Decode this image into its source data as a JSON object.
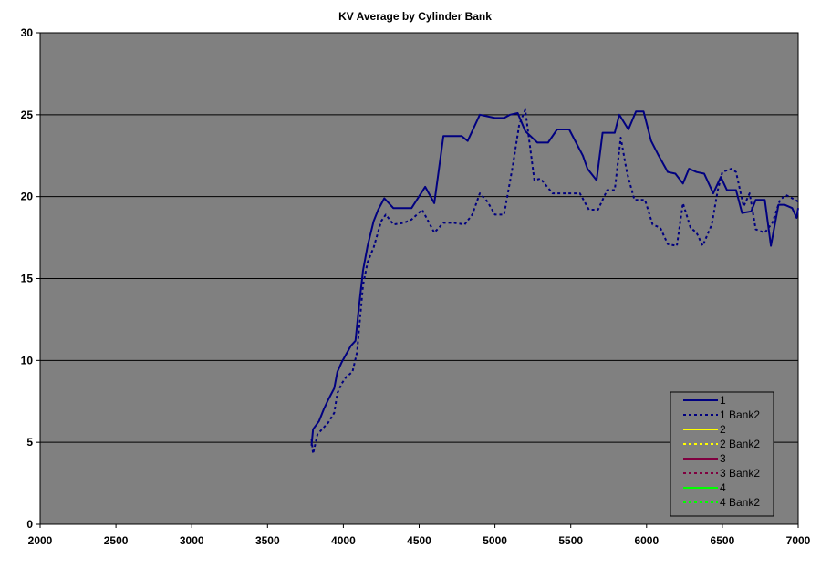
{
  "chart_data": {
    "type": "line",
    "title": "KV Average by Cylinder Bank",
    "xlabel": "",
    "ylabel": "",
    "xlim": [
      2000,
      7000
    ],
    "ylim": [
      0,
      30
    ],
    "x_ticks": [
      "2000",
      "2500",
      "3000",
      "3500",
      "4000",
      "4500",
      "5000",
      "5500",
      "6000",
      "6500",
      "7000"
    ],
    "y_ticks": [
      "0",
      "5",
      "10",
      "15",
      "20",
      "25",
      "30"
    ],
    "grid": "horizontal",
    "legend_position": "bottom-right",
    "plot_background": "#808080",
    "series": [
      {
        "name": "1",
        "color": "#000080",
        "dash": "solid",
        "points": [
          [
            3790,
            4.8
          ],
          [
            3800,
            5.8
          ],
          [
            3840,
            6.3
          ],
          [
            3870,
            7.0
          ],
          [
            3900,
            7.6
          ],
          [
            3940,
            8.3
          ],
          [
            3960,
            9.3
          ],
          [
            3990,
            9.9
          ],
          [
            4020,
            10.4
          ],
          [
            4050,
            10.9
          ],
          [
            4080,
            11.2
          ],
          [
            4100,
            13.0
          ],
          [
            4130,
            15.5
          ],
          [
            4160,
            17.0
          ],
          [
            4200,
            18.5
          ],
          [
            4230,
            19.2
          ],
          [
            4270,
            19.9
          ],
          [
            4330,
            19.3
          ],
          [
            4450,
            19.3
          ],
          [
            4540,
            20.6
          ],
          [
            4600,
            19.6
          ],
          [
            4660,
            23.7
          ],
          [
            4780,
            23.7
          ],
          [
            4820,
            23.4
          ],
          [
            4900,
            25.0
          ],
          [
            5000,
            24.8
          ],
          [
            5060,
            24.8
          ],
          [
            5100,
            25.0
          ],
          [
            5150,
            25.1
          ],
          [
            5200,
            24.0
          ],
          [
            5280,
            23.3
          ],
          [
            5350,
            23.3
          ],
          [
            5410,
            24.1
          ],
          [
            5490,
            24.1
          ],
          [
            5580,
            22.5
          ],
          [
            5610,
            21.7
          ],
          [
            5670,
            21.0
          ],
          [
            5710,
            23.9
          ],
          [
            5790,
            23.9
          ],
          [
            5820,
            25.0
          ],
          [
            5880,
            24.1
          ],
          [
            5930,
            25.2
          ],
          [
            5980,
            25.2
          ],
          [
            6030,
            23.4
          ],
          [
            6080,
            22.5
          ],
          [
            6140,
            21.5
          ],
          [
            6190,
            21.4
          ],
          [
            6240,
            20.8
          ],
          [
            6280,
            21.7
          ],
          [
            6330,
            21.5
          ],
          [
            6380,
            21.4
          ],
          [
            6440,
            20.2
          ],
          [
            6490,
            21.2
          ],
          [
            6530,
            20.4
          ],
          [
            6590,
            20.4
          ],
          [
            6630,
            19.0
          ],
          [
            6690,
            19.1
          ],
          [
            6720,
            19.8
          ],
          [
            6780,
            19.8
          ],
          [
            6820,
            17.0
          ],
          [
            6870,
            19.5
          ],
          [
            6910,
            19.5
          ],
          [
            6960,
            19.3
          ],
          [
            6990,
            18.7
          ],
          [
            7000,
            19.3
          ]
        ]
      },
      {
        "name": "1 Bank2",
        "color": "#000080",
        "dash": "dotted",
        "points": [
          [
            3790,
            5.2
          ],
          [
            3800,
            4.3
          ],
          [
            3830,
            5.5
          ],
          [
            3870,
            5.9
          ],
          [
            3900,
            6.2
          ],
          [
            3940,
            6.8
          ],
          [
            3960,
            8.0
          ],
          [
            3990,
            8.6
          ],
          [
            4020,
            9.0
          ],
          [
            4060,
            9.3
          ],
          [
            4090,
            10.5
          ],
          [
            4130,
            14.6
          ],
          [
            4160,
            16.0
          ],
          [
            4200,
            16.9
          ],
          [
            4250,
            18.5
          ],
          [
            4280,
            18.9
          ],
          [
            4330,
            18.3
          ],
          [
            4400,
            18.4
          ],
          [
            4450,
            18.6
          ],
          [
            4520,
            19.2
          ],
          [
            4600,
            17.8
          ],
          [
            4660,
            18.4
          ],
          [
            4730,
            18.4
          ],
          [
            4800,
            18.3
          ],
          [
            4850,
            18.9
          ],
          [
            4900,
            20.2
          ],
          [
            4950,
            19.7
          ],
          [
            5000,
            18.9
          ],
          [
            5060,
            18.9
          ],
          [
            5120,
            22.0
          ],
          [
            5160,
            24.4
          ],
          [
            5200,
            25.3
          ],
          [
            5260,
            21.0
          ],
          [
            5300,
            21.1
          ],
          [
            5380,
            20.2
          ],
          [
            5480,
            20.2
          ],
          [
            5560,
            20.2
          ],
          [
            5620,
            19.2
          ],
          [
            5680,
            19.2
          ],
          [
            5740,
            20.4
          ],
          [
            5790,
            20.4
          ],
          [
            5830,
            23.6
          ],
          [
            5870,
            21.5
          ],
          [
            5920,
            19.8
          ],
          [
            5990,
            19.8
          ],
          [
            6040,
            18.3
          ],
          [
            6090,
            18.1
          ],
          [
            6140,
            17.1
          ],
          [
            6200,
            17.0
          ],
          [
            6240,
            19.6
          ],
          [
            6290,
            18.1
          ],
          [
            6330,
            17.8
          ],
          [
            6370,
            17.0
          ],
          [
            6430,
            18.3
          ],
          [
            6470,
            20.4
          ],
          [
            6500,
            21.5
          ],
          [
            6560,
            21.7
          ],
          [
            6590,
            21.5
          ],
          [
            6640,
            19.4
          ],
          [
            6680,
            20.2
          ],
          [
            6720,
            18.0
          ],
          [
            6780,
            17.8
          ],
          [
            6830,
            18.4
          ],
          [
            6880,
            19.8
          ],
          [
            6920,
            20.1
          ],
          [
            6960,
            19.9
          ],
          [
            7000,
            19.7
          ]
        ]
      },
      {
        "name": "2",
        "color": "#ffff00",
        "dash": "solid",
        "points": []
      },
      {
        "name": "2 Bank2",
        "color": "#ffff00",
        "dash": "dotted",
        "points": []
      },
      {
        "name": "3",
        "color": "#800040",
        "dash": "solid",
        "points": []
      },
      {
        "name": "3 Bank2",
        "color": "#800040",
        "dash": "dotted",
        "points": []
      },
      {
        "name": "4",
        "color": "#00ff00",
        "dash": "solid",
        "points": []
      },
      {
        "name": "4 Bank2",
        "color": "#00ff00",
        "dash": "dotted",
        "points": []
      }
    ]
  }
}
